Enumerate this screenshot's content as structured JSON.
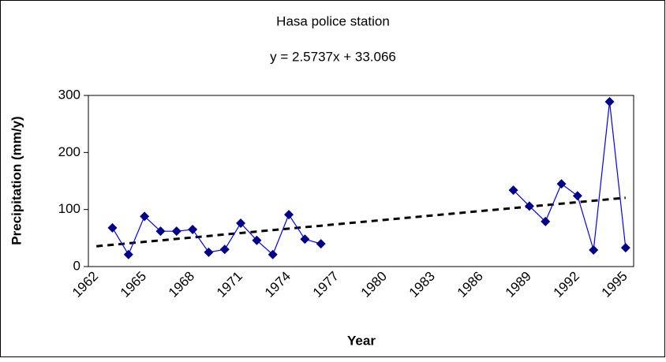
{
  "chart_data": {
    "type": "line",
    "title": "Hasa police station",
    "trendline": {
      "label": "y = 2.5737x + 33.066",
      "slope": 2.5737,
      "intercept": 33.066,
      "style": "dashed",
      "color": "#000000"
    },
    "x_label": "Year",
    "y_label": "Precipitation (mm/y)",
    "categories": [
      "1962",
      null,
      null,
      "1965",
      null,
      null,
      "1968",
      null,
      null,
      "1971",
      null,
      null,
      "1974",
      null,
      null,
      "1977",
      null,
      null,
      "1980",
      null,
      null,
      "1983",
      null,
      null,
      "1986",
      null,
      null,
      "1989",
      null,
      null,
      "1992",
      null,
      null,
      "1995"
    ],
    "series": [
      {
        "color": "#00008b",
        "values": [
          null,
          68,
          21,
          88,
          62,
          62,
          65,
          25,
          30,
          76,
          46,
          21,
          91,
          48,
          40,
          null,
          null,
          null,
          null,
          null,
          null,
          null,
          null,
          null,
          null,
          null,
          134,
          106,
          79,
          145,
          124,
          29,
          289,
          33
        ]
      }
    ],
    "ylim": [
      0,
      300
    ],
    "yticks": [
      0,
      100,
      200,
      300
    ],
    "grid": false
  }
}
